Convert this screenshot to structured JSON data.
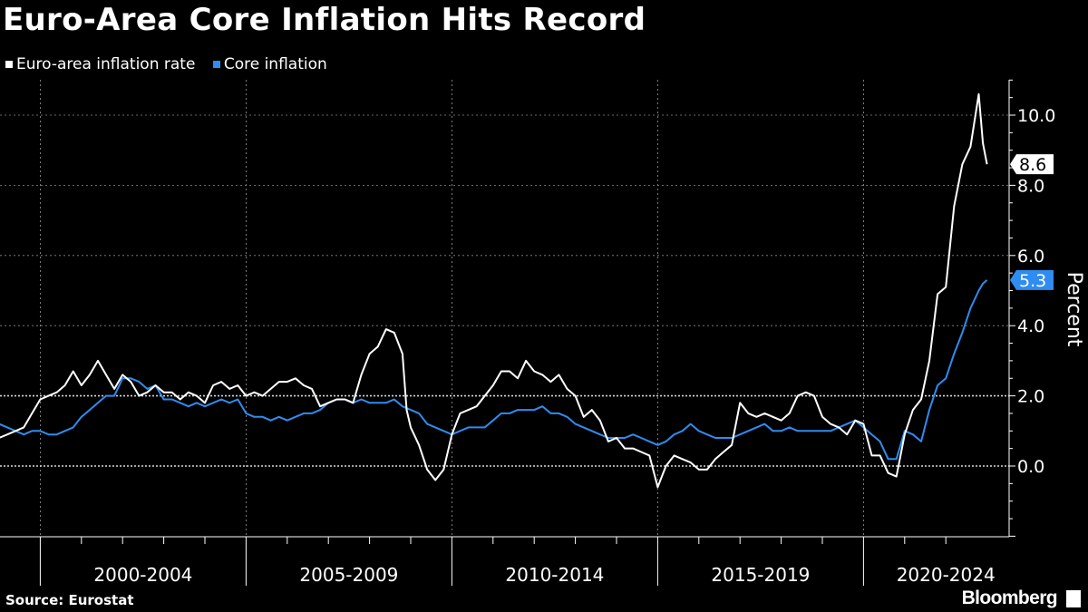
{
  "title": "Euro-Area Core Inflation Hits Record",
  "source": "Source:  Eurostat",
  "brand": "Bloomberg",
  "legend": [
    {
      "label": "Euro-area inflation rate",
      "color": "#ffffff"
    },
    {
      "label": "Core inflation",
      "color": "#2f8cf0"
    }
  ],
  "chart_data": {
    "type": "line",
    "ylabel": "Percent",
    "xlabel": "",
    "ylim": [
      -2.0,
      11.0
    ],
    "yticks": [
      0.0,
      2.0,
      4.0,
      6.0,
      8.0,
      10.0
    ],
    "ytick_labels": [
      "0.0",
      "2.0",
      "4.0",
      "6.0",
      "8.0",
      "10.0"
    ],
    "x_range": [
      1999.0,
      2023.2
    ],
    "period_labels": [
      "2000-2004",
      "2005-2009",
      "2010-2014",
      "2015-2019",
      "2020-2024"
    ],
    "period_centers": [
      2002.5,
      2007.5,
      2012.5,
      2017.5,
      2022.0
    ],
    "year_gridlines": [
      2000,
      2001,
      2002,
      2003,
      2004,
      2005,
      2006,
      2007,
      2008,
      2009,
      2010,
      2011,
      2012,
      2013,
      2014,
      2015,
      2016,
      2017,
      2018,
      2019,
      2020,
      2021,
      2022
    ],
    "period_boundaries": [
      2000,
      2005,
      2010,
      2015,
      2020
    ],
    "series": [
      {
        "name": "Euro-area inflation rate",
        "color": "#ffffff",
        "last_value_label": "8.6",
        "points": [
          [
            1999.0,
            0.8
          ],
          [
            1999.2,
            0.9
          ],
          [
            1999.4,
            1.0
          ],
          [
            1999.6,
            1.1
          ],
          [
            1999.8,
            1.5
          ],
          [
            2000.0,
            1.9
          ],
          [
            2000.2,
            2.0
          ],
          [
            2000.4,
            2.1
          ],
          [
            2000.6,
            2.3
          ],
          [
            2000.8,
            2.7
          ],
          [
            2001.0,
            2.3
          ],
          [
            2001.2,
            2.6
          ],
          [
            2001.4,
            3.0
          ],
          [
            2001.6,
            2.6
          ],
          [
            2001.8,
            2.2
          ],
          [
            2002.0,
            2.6
          ],
          [
            2002.2,
            2.4
          ],
          [
            2002.4,
            2.0
          ],
          [
            2002.6,
            2.1
          ],
          [
            2002.8,
            2.3
          ],
          [
            2003.0,
            2.1
          ],
          [
            2003.2,
            2.1
          ],
          [
            2003.4,
            1.9
          ],
          [
            2003.6,
            2.1
          ],
          [
            2003.8,
            2.0
          ],
          [
            2004.0,
            1.8
          ],
          [
            2004.2,
            2.3
          ],
          [
            2004.4,
            2.4
          ],
          [
            2004.6,
            2.2
          ],
          [
            2004.8,
            2.3
          ],
          [
            2005.0,
            2.0
          ],
          [
            2005.2,
            2.1
          ],
          [
            2005.4,
            2.0
          ],
          [
            2005.6,
            2.2
          ],
          [
            2005.8,
            2.4
          ],
          [
            2006.0,
            2.4
          ],
          [
            2006.2,
            2.5
          ],
          [
            2006.4,
            2.3
          ],
          [
            2006.6,
            2.2
          ],
          [
            2006.8,
            1.7
          ],
          [
            2007.0,
            1.8
          ],
          [
            2007.2,
            1.9
          ],
          [
            2007.4,
            1.9
          ],
          [
            2007.6,
            1.8
          ],
          [
            2007.8,
            2.6
          ],
          [
            2008.0,
            3.2
          ],
          [
            2008.2,
            3.4
          ],
          [
            2008.4,
            3.9
          ],
          [
            2008.6,
            3.8
          ],
          [
            2008.8,
            3.2
          ],
          [
            2008.9,
            1.6
          ],
          [
            2009.0,
            1.1
          ],
          [
            2009.2,
            0.6
          ],
          [
            2009.4,
            -0.1
          ],
          [
            2009.6,
            -0.4
          ],
          [
            2009.8,
            -0.1
          ],
          [
            2010.0,
            0.9
          ],
          [
            2010.2,
            1.5
          ],
          [
            2010.4,
            1.6
          ],
          [
            2010.6,
            1.7
          ],
          [
            2010.8,
            2.0
          ],
          [
            2011.0,
            2.3
          ],
          [
            2011.2,
            2.7
          ],
          [
            2011.4,
            2.7
          ],
          [
            2011.6,
            2.5
          ],
          [
            2011.8,
            3.0
          ],
          [
            2012.0,
            2.7
          ],
          [
            2012.2,
            2.6
          ],
          [
            2012.4,
            2.4
          ],
          [
            2012.6,
            2.6
          ],
          [
            2012.8,
            2.2
          ],
          [
            2013.0,
            2.0
          ],
          [
            2013.2,
            1.4
          ],
          [
            2013.4,
            1.6
          ],
          [
            2013.6,
            1.3
          ],
          [
            2013.8,
            0.7
          ],
          [
            2014.0,
            0.8
          ],
          [
            2014.2,
            0.5
          ],
          [
            2014.4,
            0.5
          ],
          [
            2014.6,
            0.4
          ],
          [
            2014.8,
            0.3
          ],
          [
            2015.0,
            -0.6
          ],
          [
            2015.2,
            0.0
          ],
          [
            2015.4,
            0.3
          ],
          [
            2015.6,
            0.2
          ],
          [
            2015.8,
            0.1
          ],
          [
            2016.0,
            -0.1
          ],
          [
            2016.2,
            -0.1
          ],
          [
            2016.4,
            0.2
          ],
          [
            2016.6,
            0.4
          ],
          [
            2016.8,
            0.6
          ],
          [
            2017.0,
            1.8
          ],
          [
            2017.2,
            1.5
          ],
          [
            2017.4,
            1.4
          ],
          [
            2017.6,
            1.5
          ],
          [
            2017.8,
            1.4
          ],
          [
            2018.0,
            1.3
          ],
          [
            2018.2,
            1.5
          ],
          [
            2018.4,
            2.0
          ],
          [
            2018.6,
            2.1
          ],
          [
            2018.8,
            2.0
          ],
          [
            2019.0,
            1.4
          ],
          [
            2019.2,
            1.2
          ],
          [
            2019.4,
            1.1
          ],
          [
            2019.6,
            0.9
          ],
          [
            2019.8,
            1.3
          ],
          [
            2020.0,
            1.2
          ],
          [
            2020.2,
            0.3
          ],
          [
            2020.4,
            0.3
          ],
          [
            2020.6,
            -0.2
          ],
          [
            2020.8,
            -0.3
          ],
          [
            2021.0,
            0.9
          ],
          [
            2021.2,
            1.6
          ],
          [
            2021.4,
            1.9
          ],
          [
            2021.6,
            3.0
          ],
          [
            2021.8,
            4.9
          ],
          [
            2022.0,
            5.1
          ],
          [
            2022.2,
            7.4
          ],
          [
            2022.4,
            8.6
          ],
          [
            2022.6,
            9.1
          ],
          [
            2022.8,
            10.6
          ],
          [
            2022.9,
            9.2
          ],
          [
            2023.0,
            8.6
          ]
        ]
      },
      {
        "name": "Core inflation",
        "color": "#2f8cf0",
        "last_value_label": "5.3",
        "points": [
          [
            1999.0,
            1.2
          ],
          [
            1999.2,
            1.1
          ],
          [
            1999.4,
            1.0
          ],
          [
            1999.6,
            0.9
          ],
          [
            1999.8,
            1.0
          ],
          [
            2000.0,
            1.0
          ],
          [
            2000.2,
            0.9
          ],
          [
            2000.4,
            0.9
          ],
          [
            2000.6,
            1.0
          ],
          [
            2000.8,
            1.1
          ],
          [
            2001.0,
            1.4
          ],
          [
            2001.2,
            1.6
          ],
          [
            2001.4,
            1.8
          ],
          [
            2001.6,
            2.0
          ],
          [
            2001.8,
            2.0
          ],
          [
            2002.0,
            2.5
          ],
          [
            2002.2,
            2.5
          ],
          [
            2002.4,
            2.4
          ],
          [
            2002.6,
            2.2
          ],
          [
            2002.8,
            2.3
          ],
          [
            2003.0,
            1.9
          ],
          [
            2003.2,
            1.9
          ],
          [
            2003.4,
            1.8
          ],
          [
            2003.6,
            1.7
          ],
          [
            2003.8,
            1.8
          ],
          [
            2004.0,
            1.7
          ],
          [
            2004.2,
            1.8
          ],
          [
            2004.4,
            1.9
          ],
          [
            2004.6,
            1.8
          ],
          [
            2004.8,
            1.9
          ],
          [
            2005.0,
            1.5
          ],
          [
            2005.2,
            1.4
          ],
          [
            2005.4,
            1.4
          ],
          [
            2005.6,
            1.3
          ],
          [
            2005.8,
            1.4
          ],
          [
            2006.0,
            1.3
          ],
          [
            2006.2,
            1.4
          ],
          [
            2006.4,
            1.5
          ],
          [
            2006.6,
            1.5
          ],
          [
            2006.8,
            1.6
          ],
          [
            2007.0,
            1.8
          ],
          [
            2007.2,
            1.9
          ],
          [
            2007.4,
            1.9
          ],
          [
            2007.6,
            1.8
          ],
          [
            2007.8,
            1.9
          ],
          [
            2008.0,
            1.8
          ],
          [
            2008.2,
            1.8
          ],
          [
            2008.4,
            1.8
          ],
          [
            2008.6,
            1.9
          ],
          [
            2008.8,
            1.7
          ],
          [
            2009.0,
            1.6
          ],
          [
            2009.2,
            1.5
          ],
          [
            2009.4,
            1.2
          ],
          [
            2009.6,
            1.1
          ],
          [
            2009.8,
            1.0
          ],
          [
            2010.0,
            0.9
          ],
          [
            2010.2,
            1.0
          ],
          [
            2010.4,
            1.1
          ],
          [
            2010.6,
            1.1
          ],
          [
            2010.8,
            1.1
          ],
          [
            2011.0,
            1.3
          ],
          [
            2011.2,
            1.5
          ],
          [
            2011.4,
            1.5
          ],
          [
            2011.6,
            1.6
          ],
          [
            2011.8,
            1.6
          ],
          [
            2012.0,
            1.6
          ],
          [
            2012.2,
            1.7
          ],
          [
            2012.4,
            1.5
          ],
          [
            2012.6,
            1.5
          ],
          [
            2012.8,
            1.4
          ],
          [
            2013.0,
            1.2
          ],
          [
            2013.2,
            1.1
          ],
          [
            2013.4,
            1.0
          ],
          [
            2013.6,
            0.9
          ],
          [
            2013.8,
            0.8
          ],
          [
            2014.0,
            0.8
          ],
          [
            2014.2,
            0.8
          ],
          [
            2014.4,
            0.9
          ],
          [
            2014.6,
            0.8
          ],
          [
            2014.8,
            0.7
          ],
          [
            2015.0,
            0.6
          ],
          [
            2015.2,
            0.7
          ],
          [
            2015.4,
            0.9
          ],
          [
            2015.6,
            1.0
          ],
          [
            2015.8,
            1.2
          ],
          [
            2016.0,
            1.0
          ],
          [
            2016.2,
            0.9
          ],
          [
            2016.4,
            0.8
          ],
          [
            2016.6,
            0.8
          ],
          [
            2016.8,
            0.8
          ],
          [
            2017.0,
            0.9
          ],
          [
            2017.2,
            1.0
          ],
          [
            2017.4,
            1.1
          ],
          [
            2017.6,
            1.2
          ],
          [
            2017.8,
            1.0
          ],
          [
            2018.0,
            1.0
          ],
          [
            2018.2,
            1.1
          ],
          [
            2018.4,
            1.0
          ],
          [
            2018.6,
            1.0
          ],
          [
            2018.8,
            1.0
          ],
          [
            2019.0,
            1.0
          ],
          [
            2019.2,
            1.0
          ],
          [
            2019.4,
            1.1
          ],
          [
            2019.6,
            1.2
          ],
          [
            2019.8,
            1.3
          ],
          [
            2020.0,
            1.1
          ],
          [
            2020.2,
            0.9
          ],
          [
            2020.4,
            0.7
          ],
          [
            2020.6,
            0.2
          ],
          [
            2020.8,
            0.2
          ],
          [
            2021.0,
            1.0
          ],
          [
            2021.2,
            0.9
          ],
          [
            2021.4,
            0.7
          ],
          [
            2021.6,
            1.6
          ],
          [
            2021.8,
            2.3
          ],
          [
            2022.0,
            2.5
          ],
          [
            2022.2,
            3.2
          ],
          [
            2022.4,
            3.8
          ],
          [
            2022.6,
            4.5
          ],
          [
            2022.8,
            5.0
          ],
          [
            2022.9,
            5.2
          ],
          [
            2023.0,
            5.3
          ]
        ]
      }
    ]
  }
}
